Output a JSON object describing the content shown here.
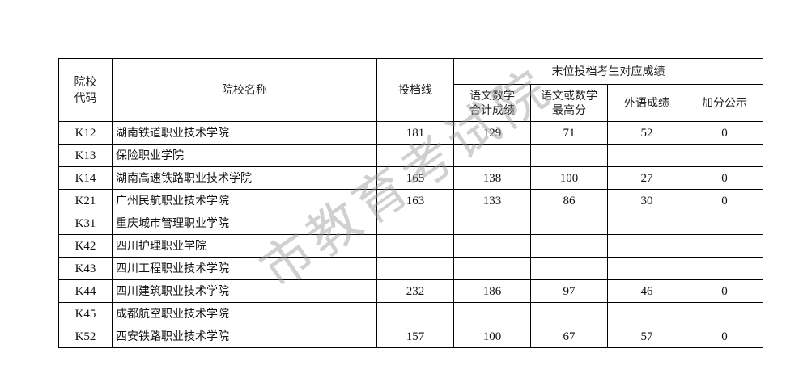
{
  "header": {
    "code": "院校代码",
    "code_line1": "院校",
    "code_line2": "代码",
    "name": "院校名称",
    "line": "投档线",
    "group": "末位投档考生对应成绩",
    "sub1_line1": "语文数学",
    "sub1_line2": "合计成绩",
    "sub2_line1": "语文或数学",
    "sub2_line2": "最高分",
    "sub3": "外语成绩",
    "sub4": "加分公示"
  },
  "rows": [
    {
      "code": "K12",
      "name": "湖南铁道职业技术学院",
      "line": "181",
      "c1": "129",
      "c2": "71",
      "c3": "52",
      "c4": "0"
    },
    {
      "code": "K13",
      "name": "保险职业学院",
      "line": "",
      "c1": "",
      "c2": "",
      "c3": "",
      "c4": ""
    },
    {
      "code": "K14",
      "name": "湖南高速铁路职业技术学院",
      "line": "165",
      "c1": "138",
      "c2": "100",
      "c3": "27",
      "c4": "0"
    },
    {
      "code": "K21",
      "name": "广州民航职业技术学院",
      "line": "163",
      "c1": "133",
      "c2": "86",
      "c3": "30",
      "c4": "0"
    },
    {
      "code": "K31",
      "name": "重庆城市管理职业学院",
      "line": "",
      "c1": "",
      "c2": "",
      "c3": "",
      "c4": ""
    },
    {
      "code": "K42",
      "name": "四川护理职业学院",
      "line": "",
      "c1": "",
      "c2": "",
      "c3": "",
      "c4": ""
    },
    {
      "code": "K43",
      "name": "四川工程职业技术学院",
      "line": "",
      "c1": "",
      "c2": "",
      "c3": "",
      "c4": ""
    },
    {
      "code": "K44",
      "name": "四川建筑职业技术学院",
      "line": "232",
      "c1": "186",
      "c2": "97",
      "c3": "46",
      "c4": "0"
    },
    {
      "code": "K45",
      "name": "成都航空职业技术学院",
      "line": "",
      "c1": "",
      "c2": "",
      "c3": "",
      "c4": ""
    },
    {
      "code": "K52",
      "name": "西安铁路职业技术学院",
      "line": "157",
      "c1": "100",
      "c2": "67",
      "c3": "57",
      "c4": "0"
    }
  ],
  "watermark": "市教育考试院"
}
